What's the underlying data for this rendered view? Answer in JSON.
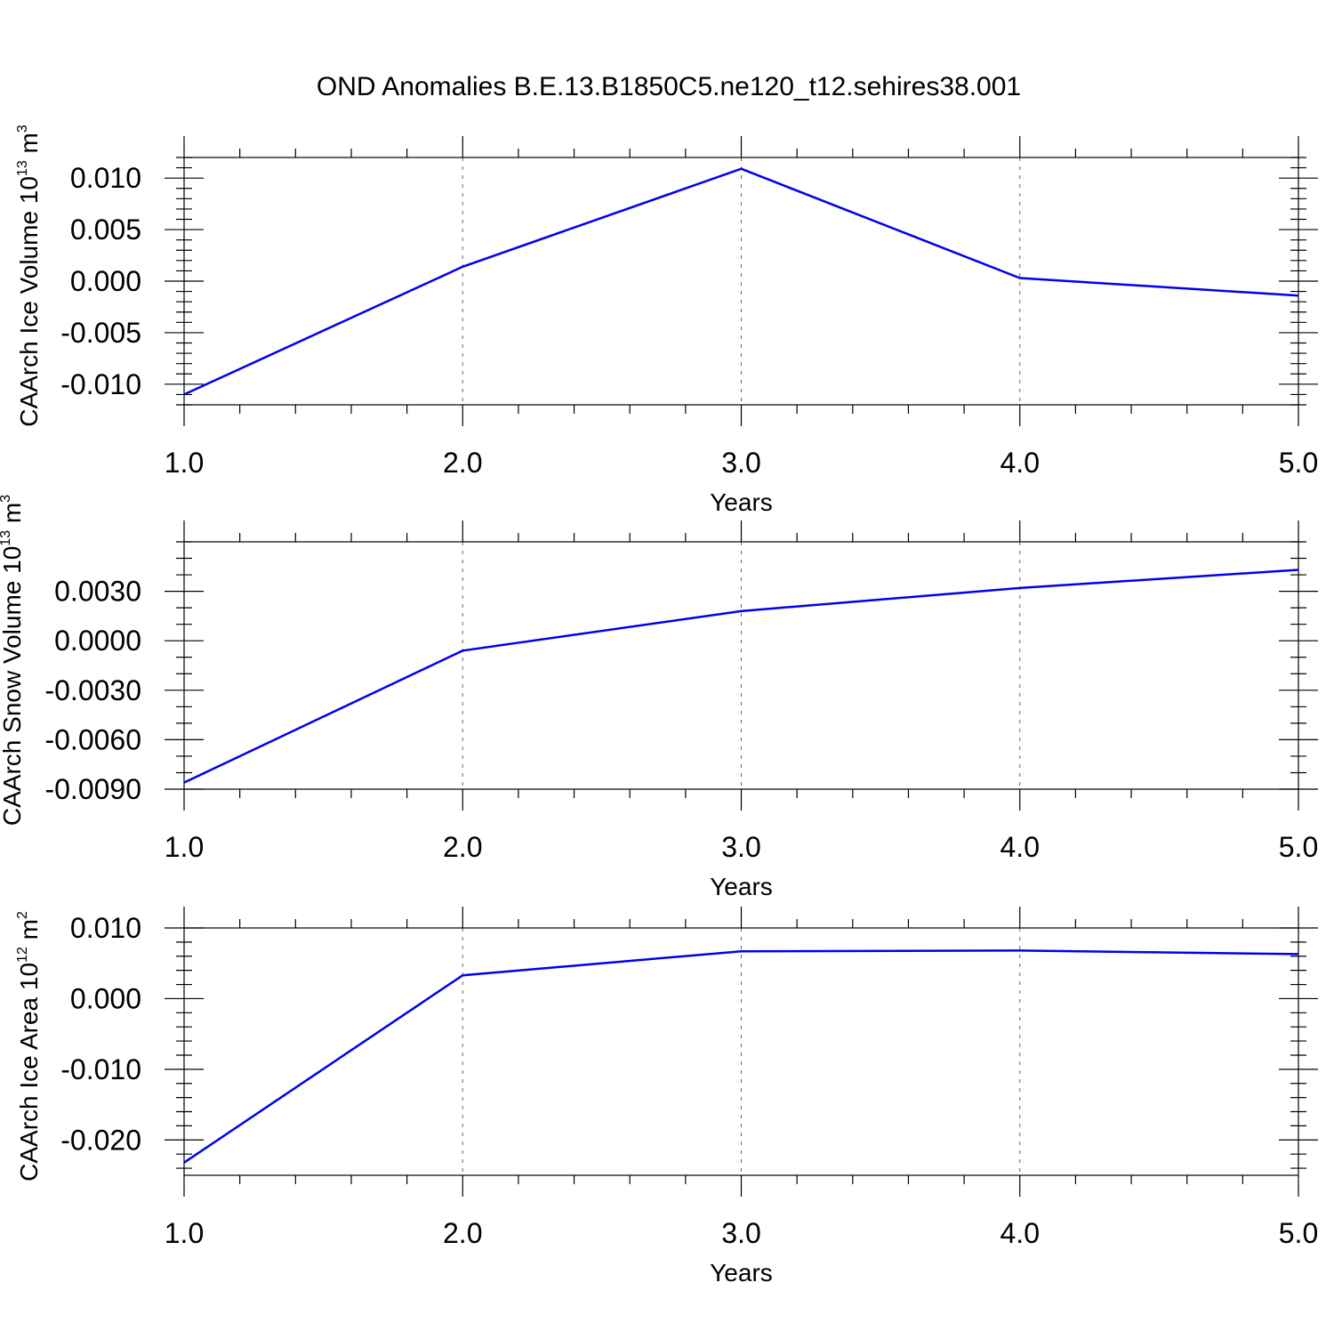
{
  "title": "OND Anomalies B.E.13.B1850C5.ne120_t12.sehires38.001",
  "line_color": "#0000ee",
  "chart_data": [
    {
      "type": "line",
      "ylabel": "CAArch Ice Volume 10",
      "ylabel_exponent": "13",
      "ylabel_unit": "m",
      "ylabel_unit_exponent": "3",
      "xlabel": "Years",
      "xlim": [
        1.0,
        5.0
      ],
      "ylim": [
        -0.012,
        0.012
      ],
      "x_ticks": [
        1.0,
        2.0,
        3.0,
        4.0,
        5.0
      ],
      "x_tick_labels": [
        "1.0",
        "2.0",
        "3.0",
        "4.0",
        "5.0"
      ],
      "y_ticks": [
        -0.01,
        -0.005,
        0.0,
        0.005,
        0.01
      ],
      "y_tick_labels": [
        "-0.010",
        "-0.005",
        "0.000",
        "0.005",
        "0.010"
      ],
      "y_minor_step": 0.001,
      "x": [
        1.0,
        2.0,
        3.0,
        4.0,
        5.0
      ],
      "values": [
        -0.011,
        0.0014,
        0.0109,
        0.0003,
        -0.0014
      ]
    },
    {
      "type": "line",
      "ylabel": "CAArch Snow Volume 10",
      "ylabel_exponent": "13",
      "ylabel_unit": "m",
      "ylabel_unit_exponent": "3",
      "xlabel": "Years",
      "xlim": [
        1.0,
        5.0
      ],
      "ylim": [
        -0.009,
        0.006
      ],
      "x_ticks": [
        1.0,
        2.0,
        3.0,
        4.0,
        5.0
      ],
      "x_tick_labels": [
        "1.0",
        "2.0",
        "3.0",
        "4.0",
        "5.0"
      ],
      "y_ticks": [
        -0.009,
        -0.006,
        -0.003,
        0.0,
        0.003
      ],
      "y_tick_labels": [
        "-0.0090",
        "-0.0060",
        "-0.0030",
        "0.0000",
        "0.0030"
      ],
      "y_minor_step": 0.001,
      "x": [
        1.0,
        2.0,
        3.0,
        4.0,
        5.0
      ],
      "values": [
        -0.0086,
        -0.0006,
        0.0018,
        0.0032,
        0.0043
      ]
    },
    {
      "type": "line",
      "ylabel": "CAArch Ice Area 10",
      "ylabel_exponent": "12",
      "ylabel_unit": "m",
      "ylabel_unit_exponent": "2",
      "xlabel": "Years",
      "xlim": [
        1.0,
        5.0
      ],
      "ylim": [
        -0.025,
        0.01
      ],
      "x_ticks": [
        1.0,
        2.0,
        3.0,
        4.0,
        5.0
      ],
      "x_tick_labels": [
        "1.0",
        "2.0",
        "3.0",
        "4.0",
        "5.0"
      ],
      "y_ticks": [
        -0.02,
        -0.01,
        0.0,
        0.01
      ],
      "y_tick_labels": [
        "-0.020",
        "-0.010",
        "0.000",
        "0.010"
      ],
      "y_minor_step": 0.002,
      "x": [
        1.0,
        2.0,
        3.0,
        4.0,
        5.0
      ],
      "values": [
        -0.0232,
        0.0033,
        0.0067,
        0.0068,
        0.0063
      ]
    }
  ]
}
